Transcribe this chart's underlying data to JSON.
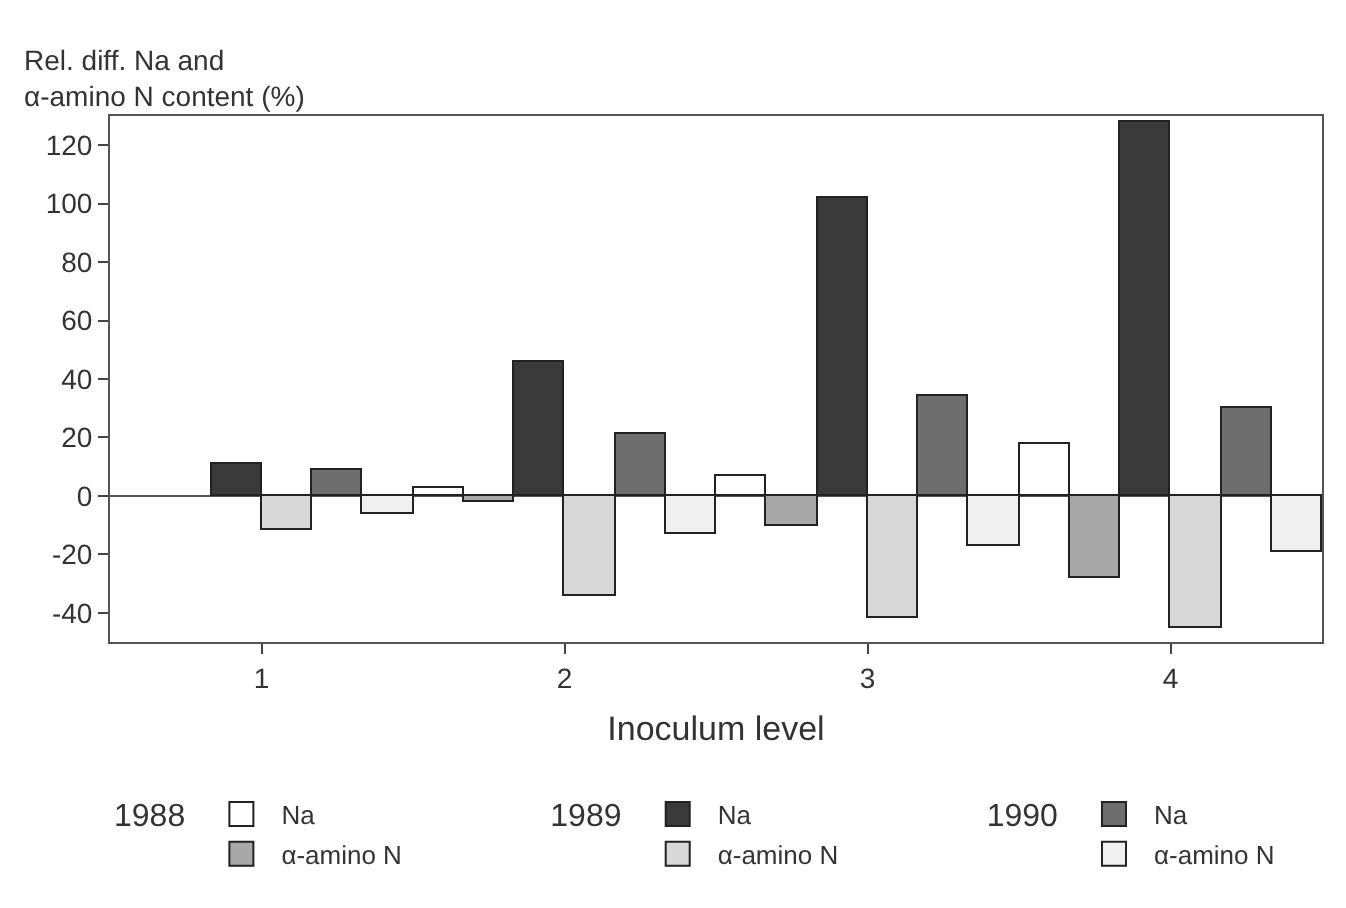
{
  "chart_data": {
    "type": "bar",
    "xlabel": "Inoculum level",
    "ylabel": "Rel. diff. Na and\nα-amino N content (%)",
    "categories": [
      "1",
      "2",
      "3",
      "4"
    ],
    "series": [
      {
        "name": "Na",
        "color": "#ffffff",
        "values": [
          null,
          3,
          7,
          18
        ]
      },
      {
        "name": "α-amino N",
        "color": "#a8a8a8",
        "values": [
          null,
          -2,
          -10,
          -28
        ]
      },
      {
        "name": "Na",
        "color": "#3a3a3a",
        "values": [
          11,
          46,
          102,
          128
        ]
      },
      {
        "name": "α-amino N",
        "color": "#d8d8d8",
        "values": [
          -12,
          -34,
          -42,
          -45
        ]
      },
      {
        "name": "Na",
        "color": "#6e6e6e",
        "values": [
          9,
          21,
          34,
          30
        ]
      },
      {
        "name": "α-amino N",
        "color": "#f0f0f0",
        "values": [
          -6,
          -13,
          -17,
          -19
        ]
      }
    ],
    "annotations": [
      "1988",
      "1989",
      "1990"
    ],
    "ylim": [
      -50,
      130
    ],
    "yticks": [
      -40,
      -20,
      0,
      20,
      40,
      60,
      80,
      100,
      120
    ],
    "ref_lines": [
      {
        "axis": "y",
        "value": 0,
        "color": "#555555"
      }
    ],
    "grid": false,
    "legend": "bottom"
  }
}
